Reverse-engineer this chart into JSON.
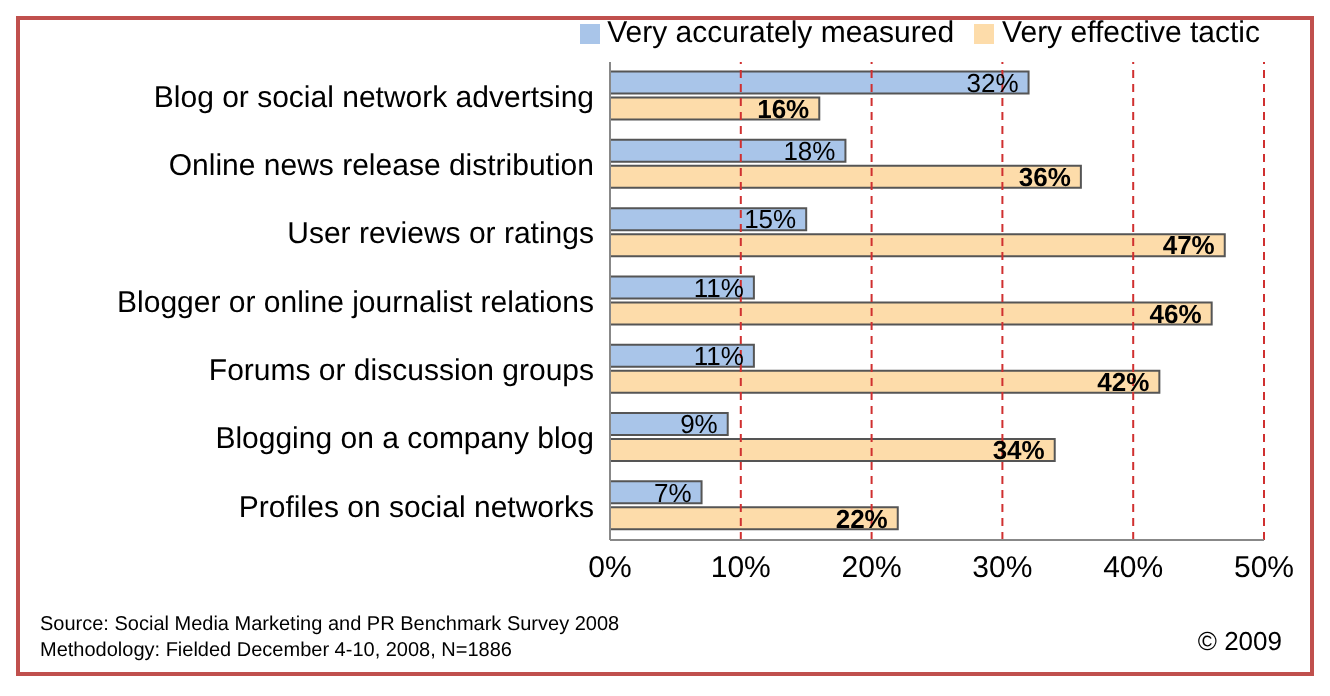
{
  "chart_data": {
    "type": "bar",
    "orientation": "horizontal",
    "categories": [
      "Blog or social network advertsing",
      "Online news release distribution",
      "User reviews or ratings",
      "Blogger or online journalist relations",
      "Forums or discussion groups",
      "Blogging on a company blog",
      "Profiles on social networks"
    ],
    "series": [
      {
        "name": "Very accurately measured",
        "color": "#a9c5e9",
        "values": [
          32,
          18,
          15,
          11,
          11,
          9,
          7
        ],
        "value_labels": [
          "32%",
          "18%",
          "15%",
          "11%",
          "11%",
          "9%",
          "7%"
        ]
      },
      {
        "name": "Very effective tactic",
        "color": "#fddcaa",
        "values": [
          16,
          36,
          47,
          46,
          42,
          34,
          22
        ],
        "value_labels": [
          "16%",
          "36%",
          "47%",
          "46%",
          "42%",
          "34%",
          "22%"
        ]
      }
    ],
    "xlim": [
      0,
      50
    ],
    "xticks": [
      {
        "value": 0,
        "label": "0%"
      },
      {
        "value": 10,
        "label": "10%"
      },
      {
        "value": 20,
        "label": "20%"
      },
      {
        "value": 30,
        "label": "30%"
      },
      {
        "value": 40,
        "label": "40%"
      },
      {
        "value": 50,
        "label": "50%"
      }
    ],
    "grid": "x",
    "legend": "top right",
    "annotations": [
      "Source: Social Media Marketing and PR Benchmark Survey 2008",
      "Methodology: Fielded December 4-10, 2008, N=1886",
      "© 2009"
    ]
  }
}
